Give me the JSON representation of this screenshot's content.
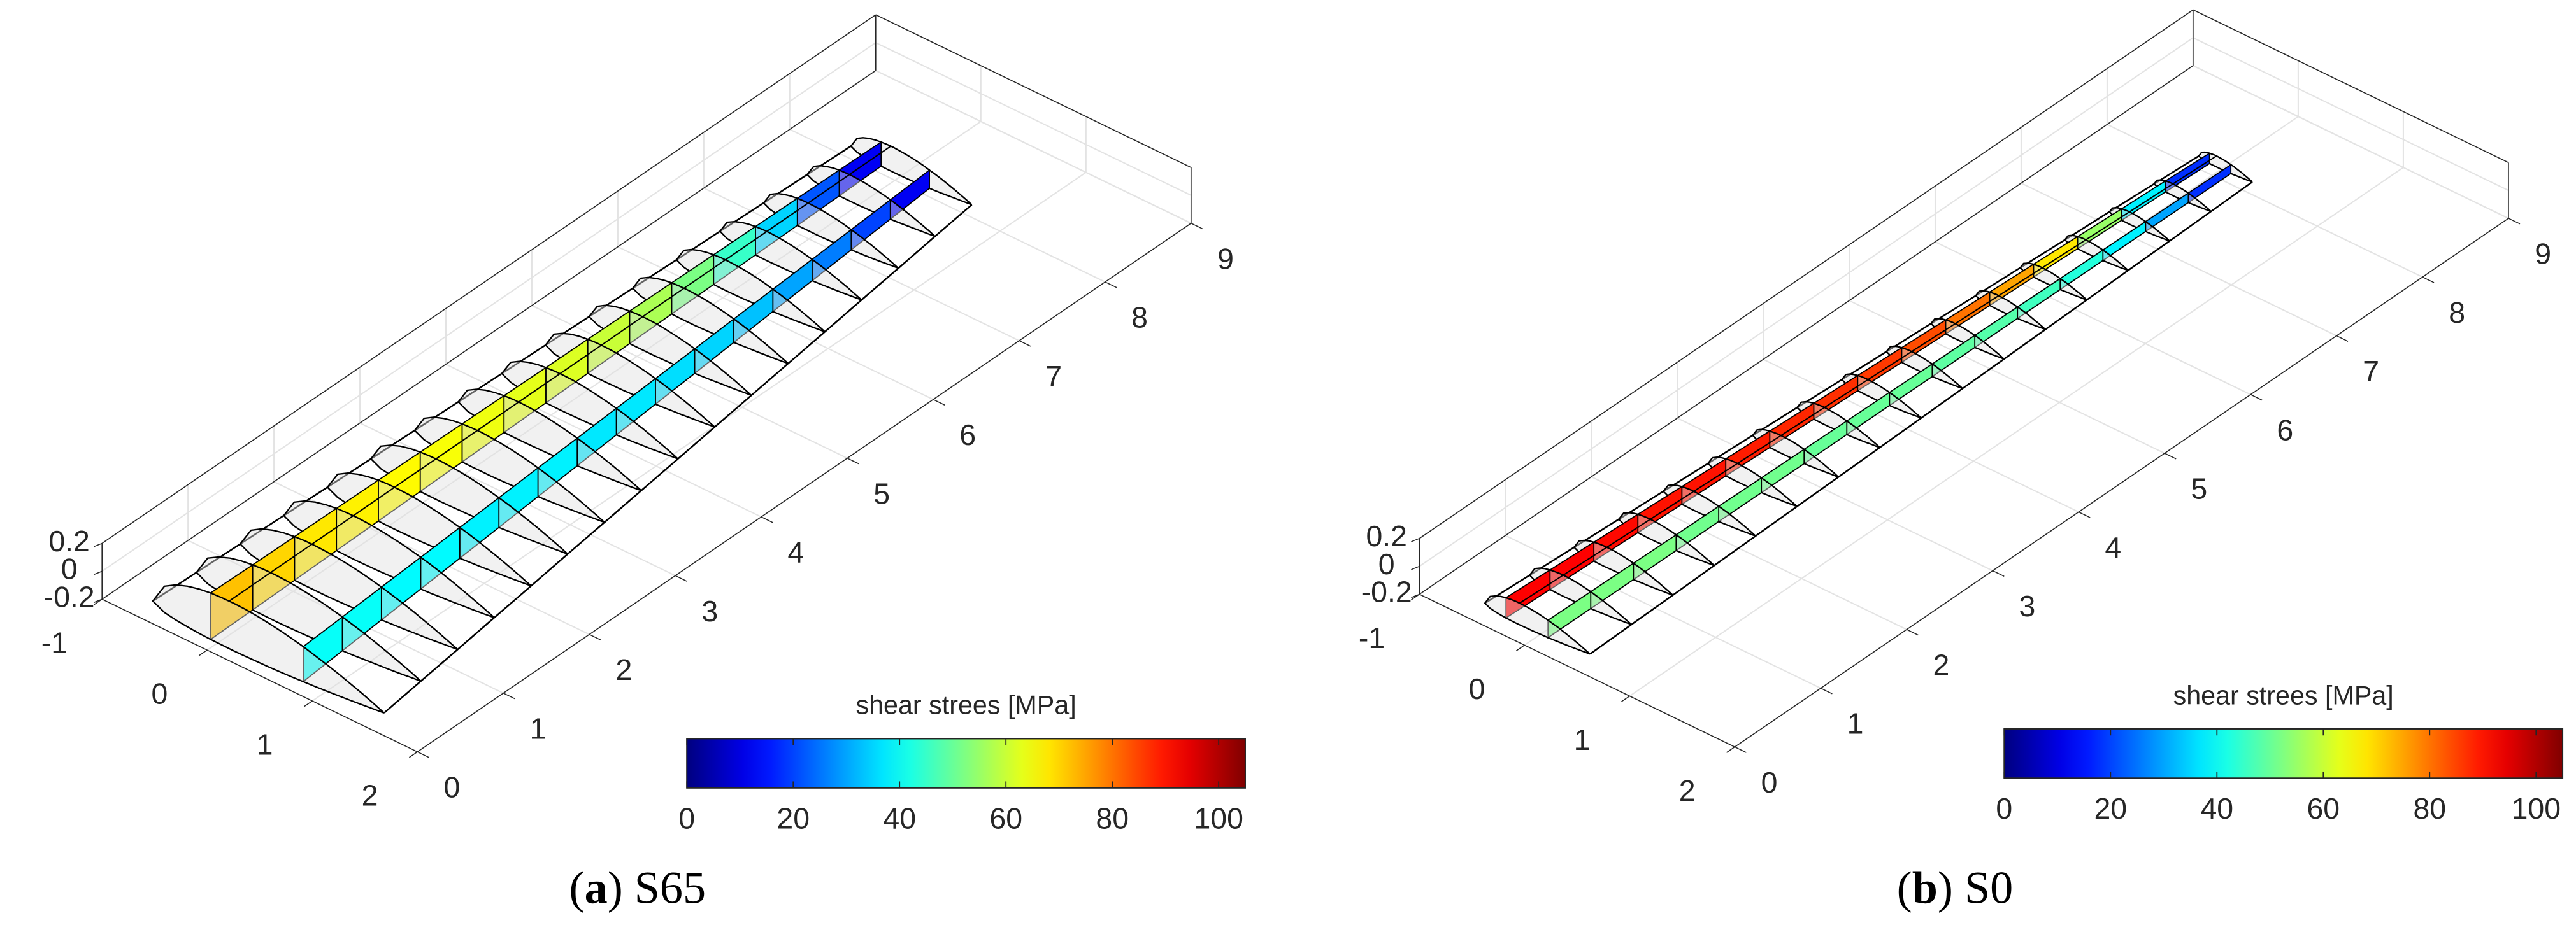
{
  "panels": [
    {
      "caption": [
        "(",
        "a",
        ") S65"
      ],
      "colorbar": {
        "label": "shear strees [MPa]",
        "lim": [
          0,
          105
        ],
        "ticks": [
          0,
          20,
          40,
          60,
          80,
          100
        ]
      },
      "span_axis": {
        "lim": [
          0,
          9
        ],
        "ticks": [
          0,
          1,
          2,
          3,
          4,
          5,
          6,
          7,
          8,
          9
        ]
      },
      "chord_axis": {
        "lim": [
          -1,
          2
        ],
        "ticks": [
          -1,
          0,
          1,
          2
        ]
      },
      "z_axis": {
        "lim": [
          -0.2,
          0.2
        ],
        "ticks": [
          -0.2,
          0,
          0.2
        ]
      },
      "front_spar_stress": [
        72,
        70,
        68,
        67,
        66,
        65,
        64,
        63,
        62,
        60,
        57,
        52,
        45,
        35,
        22,
        12
      ],
      "rear_spar_stress": [
        40,
        40,
        39,
        39,
        38,
        38,
        38,
        37,
        37,
        36,
        35,
        33,
        30,
        26,
        20,
        12
      ]
    },
    {
      "caption": [
        "(",
        "b",
        ") S0"
      ],
      "colorbar": {
        "label": "shear strees [MPa]",
        "lim": [
          0,
          105
        ],
        "ticks": [
          0,
          20,
          40,
          60,
          80,
          100
        ]
      },
      "span_axis": {
        "lim": [
          0,
          9
        ],
        "ticks": [
          0,
          1,
          2,
          3,
          4,
          5,
          6,
          7,
          8,
          9
        ]
      },
      "chord_axis": {
        "lim": [
          -1,
          2
        ],
        "ticks": [
          -1,
          0,
          1,
          2
        ]
      },
      "z_axis": {
        "lim": [
          -0.2,
          0.2
        ],
        "ticks": [
          -0.2,
          0,
          0.2
        ]
      },
      "front_spar_stress": [
        92,
        92,
        91,
        90,
        90,
        89,
        88,
        87,
        86,
        84,
        80,
        75,
        68,
        55,
        38,
        18
      ],
      "rear_spar_stress": [
        52,
        52,
        52,
        51,
        51,
        51,
        50,
        50,
        50,
        49,
        48,
        46,
        43,
        38,
        30,
        18
      ]
    }
  ]
}
